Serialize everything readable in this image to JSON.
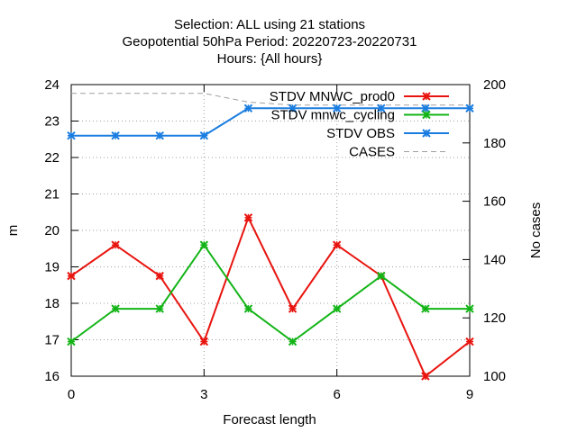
{
  "chart_data": {
    "type": "line",
    "title_lines": [
      "Selection: ALL using    21 stations",
      "Geopotential 50hPa   Period: 20220723-20220731",
      "Hours: {All hours}"
    ],
    "xlabel": "Forecast length",
    "ylabel": "m",
    "y2label": "No cases",
    "xlim": [
      0,
      9
    ],
    "ylim": [
      16,
      24
    ],
    "y2lim": [
      100,
      200
    ],
    "xticks": [
      0,
      3,
      6,
      9
    ],
    "yticks": [
      16,
      17,
      18,
      19,
      20,
      21,
      22,
      23,
      24
    ],
    "y2ticks": [
      100,
      120,
      140,
      160,
      180,
      200
    ],
    "grid": true,
    "legend_position": "top-right",
    "x": [
      0,
      1,
      2,
      3,
      4,
      5,
      6,
      7,
      8,
      9
    ],
    "series": [
      {
        "name": "STDV MNWC_prod0",
        "axis": "y",
        "color": "#e8140f",
        "marker": "x",
        "values": [
          18.75,
          19.6,
          18.75,
          16.95,
          20.35,
          17.85,
          19.6,
          18.75,
          16.0,
          16.95
        ]
      },
      {
        "name": "STDV mnwc_cycling",
        "axis": "y",
        "color": "#13b417",
        "marker": "x",
        "values": [
          16.95,
          17.85,
          17.85,
          19.6,
          17.85,
          16.95,
          17.85,
          18.75,
          17.85,
          17.85
        ]
      },
      {
        "name": "STDV OBS",
        "axis": "y",
        "color": "#1a7de0",
        "marker": "x",
        "values": [
          22.6,
          22.6,
          22.6,
          22.6,
          23.35,
          23.35,
          23.35,
          23.35,
          23.35,
          23.35
        ]
      },
      {
        "name": "CASES",
        "axis": "y2",
        "color": "#a0a0a0",
        "dashed": true,
        "values": [
          197,
          197,
          197,
          197,
          194,
          193,
          193,
          193,
          193,
          193
        ]
      }
    ]
  }
}
